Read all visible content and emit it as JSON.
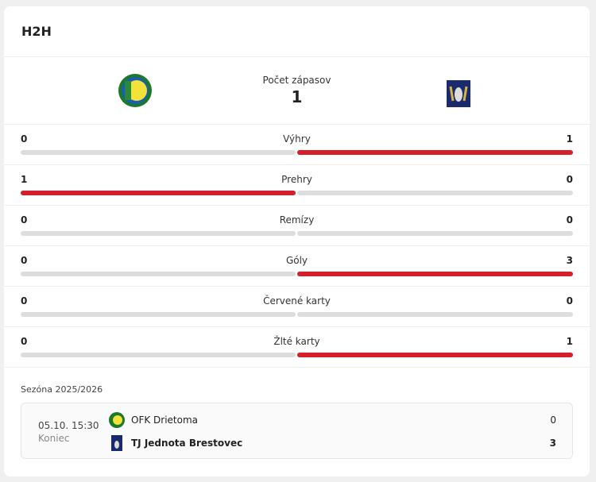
{
  "title": "H2H",
  "header": {
    "matches_label": "Počet zápasov",
    "matches_count": "1",
    "home_logo": "ofk-drietoma-crest",
    "away_logo": "brestovec-crest"
  },
  "stats": [
    {
      "label": "Výhry",
      "home": "0",
      "away": "1"
    },
    {
      "label": "Prehry",
      "home": "1",
      "away": "0"
    },
    {
      "label": "Remízy",
      "home": "0",
      "away": "0"
    },
    {
      "label": "Góly",
      "home": "0",
      "away": "3"
    },
    {
      "label": "Červené karty",
      "home": "0",
      "away": "0"
    },
    {
      "label": "Žlté karty",
      "home": "0",
      "away": "1"
    }
  ],
  "colors": {
    "accent": "#d3202a",
    "track": "#dddddd"
  },
  "season": "Sezóna 2025/2026",
  "match": {
    "date": "05.10. 15:30",
    "status": "Koniec",
    "home": {
      "name": "OFK Drietoma",
      "score": "0"
    },
    "away": {
      "name": "TJ Jednota Brestovec",
      "score": "3"
    }
  }
}
